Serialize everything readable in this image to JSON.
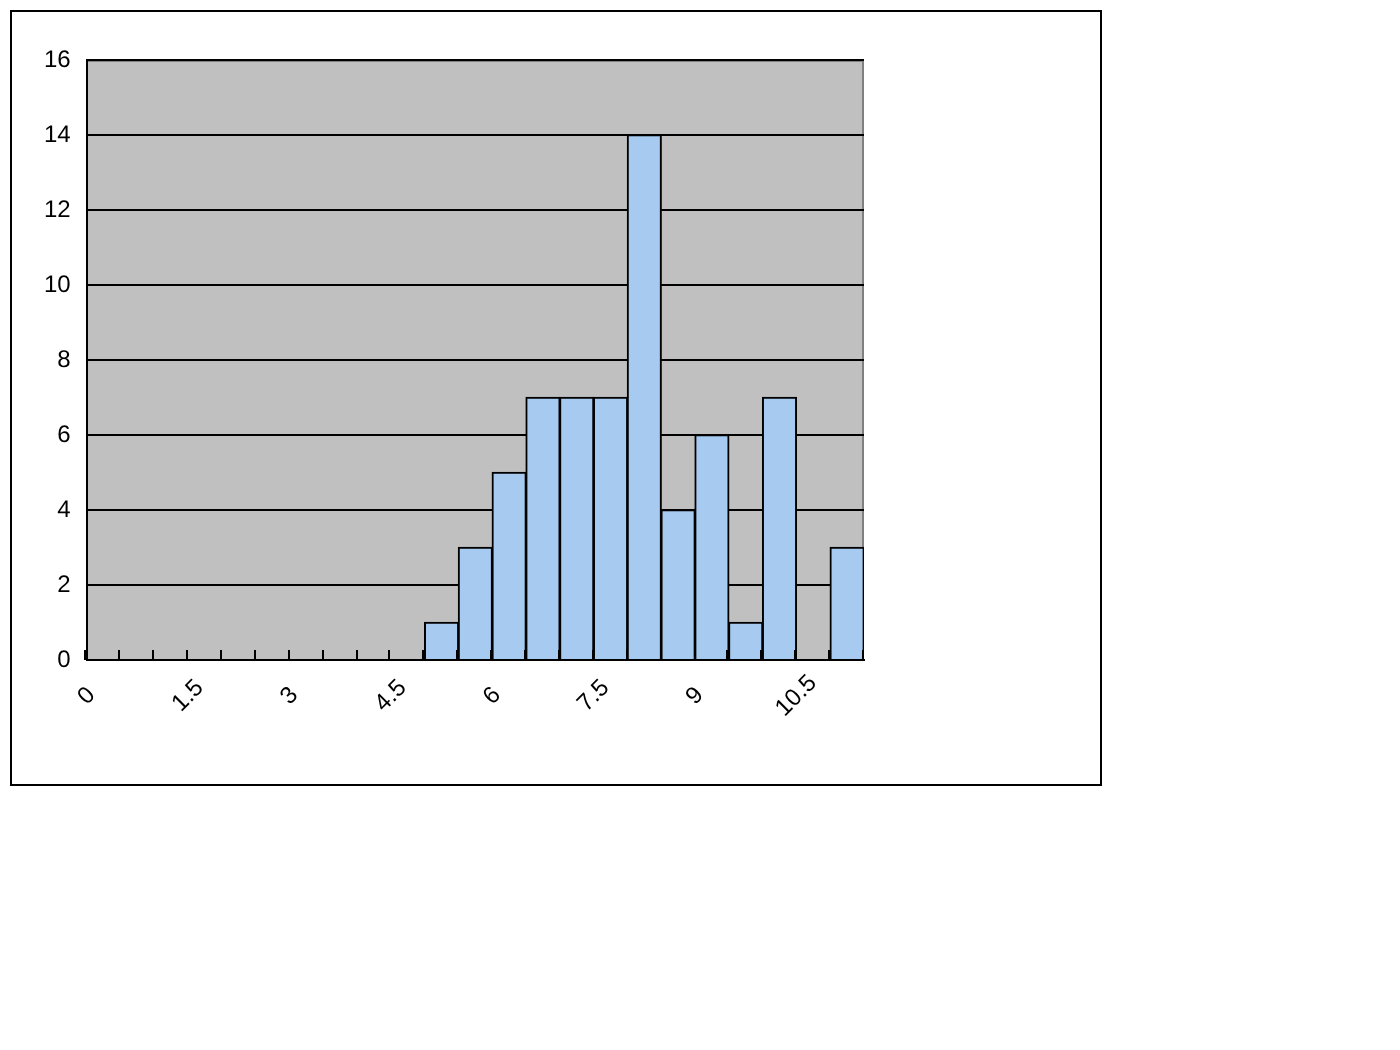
{
  "chart_data": {
    "type": "histogram",
    "bins": [
      0,
      0.5,
      1,
      1.5,
      2,
      2.5,
      3,
      3.5,
      4,
      4.5,
      5,
      5.5,
      6,
      6.5,
      7,
      7.5,
      8,
      8.5,
      9,
      9.5,
      10,
      10.5,
      11,
      11.5
    ],
    "values": [
      0,
      0,
      0,
      0,
      0,
      0,
      0,
      0,
      0,
      0,
      1,
      3,
      5,
      7,
      7,
      7,
      14,
      4,
      6,
      1,
      7,
      0,
      3
    ],
    "color": "#a6caf0",
    "xlim": [
      0,
      11.5
    ],
    "xticks": [
      0,
      {
        "value": 0.5,
        "label": null
      },
      {
        "value": 1,
        "label": null
      },
      1.5,
      {
        "value": 2,
        "label": null
      },
      {
        "value": 2.5,
        "label": null
      },
      3,
      {
        "value": 3.5,
        "label": null
      },
      {
        "value": 4,
        "label": null
      },
      4.5,
      {
        "value": 5,
        "label": null
      },
      {
        "value": 5.5,
        "label": null
      },
      6,
      {
        "value": 6.5,
        "label": null
      },
      {
        "value": 7,
        "label": null
      },
      7.5,
      {
        "value": 8,
        "label": null
      },
      {
        "value": 8.5,
        "label": null
      },
      9,
      {
        "value": 9.5,
        "label": null
      },
      {
        "value": 10,
        "label": null
      },
      10.5,
      {
        "value": 11,
        "label": null
      },
      {
        "value": 11.5,
        "label": null
      }
    ],
    "ylim": [
      0,
      16
    ],
    "yticks": [
      0,
      2,
      4,
      6,
      8,
      10,
      12,
      14,
      16
    ],
    "grid": "y",
    "legend": false
  }
}
